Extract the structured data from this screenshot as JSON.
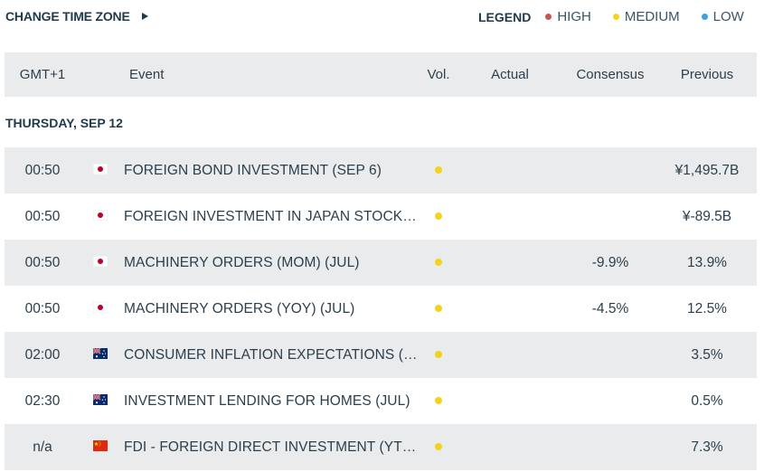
{
  "top": {
    "change_timezone_label": "CHANGE TIME ZONE",
    "legend_title": "LEGEND",
    "legend_items": [
      {
        "label": "HIGH",
        "color": "#c9534f"
      },
      {
        "label": "MEDIUM",
        "color": "#f5d21b"
      },
      {
        "label": "LOW",
        "color": "#3aa3e0"
      }
    ]
  },
  "table": {
    "headers": {
      "timezone": "GMT+1",
      "event": "Event",
      "vol": "Vol.",
      "actual": "Actual",
      "consensus": "Consensus",
      "previous": "Previous"
    },
    "section": "THURSDAY, SEP 12",
    "rows": [
      {
        "time": "00:50",
        "flag": "flag-japan-icon",
        "event": "FOREIGN BOND INVESTMENT (SEP 6)",
        "vol": "medium",
        "actual": "",
        "consensus": "",
        "previous": "¥1,495.7B"
      },
      {
        "time": "00:50",
        "flag": "flag-japan-icon",
        "event": "FOREIGN INVESTMENT IN JAPAN STOCKS ...",
        "vol": "medium",
        "actual": "",
        "consensus": "",
        "previous": "¥-89.5B"
      },
      {
        "time": "00:50",
        "flag": "flag-japan-icon",
        "event": "MACHINERY ORDERS (MOM) (JUL)",
        "vol": "medium",
        "actual": "",
        "consensus": "-9.9%",
        "previous": "13.9%"
      },
      {
        "time": "00:50",
        "flag": "flag-japan-icon",
        "event": "MACHINERY ORDERS (YOY) (JUL)",
        "vol": "medium",
        "actual": "",
        "consensus": "-4.5%",
        "previous": "12.5%"
      },
      {
        "time": "02:00",
        "flag": "flag-australia-icon",
        "event": "CONSUMER INFLATION EXPECTATIONS (S...",
        "vol": "medium",
        "actual": "",
        "consensus": "",
        "previous": "3.5%"
      },
      {
        "time": "02:30",
        "flag": "flag-australia-icon",
        "event": "INVESTMENT LENDING FOR HOMES (JUL)",
        "vol": "medium",
        "actual": "",
        "consensus": "",
        "previous": "0.5%"
      },
      {
        "time": "n/a",
        "flag": "flag-china-icon",
        "event": "FDI - FOREIGN DIRECT INVESTMENT (YTD...",
        "vol": "medium",
        "actual": "",
        "consensus": "",
        "previous": "7.3%"
      }
    ]
  },
  "colors": {
    "high": "#c9534f",
    "medium": "#f5d21b",
    "low": "#3aa3e0",
    "row_shade": "#eaebec",
    "text": "#1f3a4d"
  }
}
